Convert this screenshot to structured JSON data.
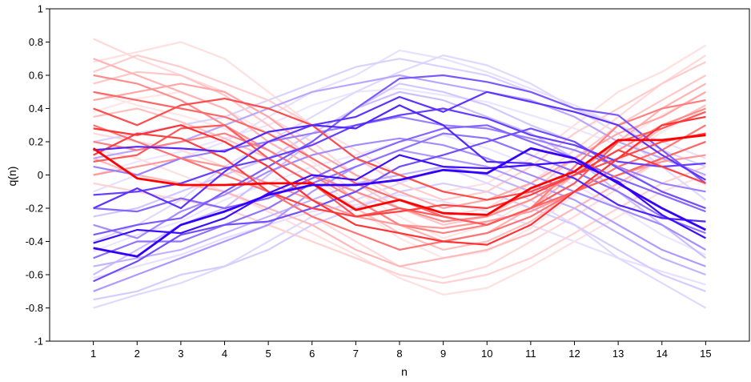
{
  "chart_data": {
    "type": "line",
    "xlabel": "n",
    "ylabel": "q(n)",
    "xlim": [
      0,
      16
    ],
    "ylim": [
      -1,
      1
    ],
    "x": [
      1,
      2,
      3,
      4,
      5,
      6,
      7,
      8,
      9,
      10,
      11,
      12,
      13,
      14,
      15
    ],
    "x_tick_labels": [
      "1",
      "2",
      "3",
      "4",
      "5",
      "6",
      "7",
      "8",
      "9",
      "10",
      "11",
      "12",
      "13",
      "14",
      "15"
    ],
    "y_ticks": [
      -1,
      -0.8,
      -0.6,
      -0.4,
      -0.2,
      0,
      0.2,
      0.4,
      0.6,
      0.8,
      1
    ],
    "y_tick_labels": [
      "-1",
      "-0.8",
      "-0.6",
      "-0.4",
      "-0.2",
      "0",
      "0.2",
      "0.4",
      "0.6",
      "0.8",
      "1"
    ],
    "grid": false,
    "legend": "none",
    "colors": {
      "red_family": "#ff0000",
      "blue_family": "#3300ff",
      "background": "#ffffff",
      "axis": "#000000"
    },
    "series": [
      {
        "family": "red",
        "intensity": 1.0,
        "values": [
          0.16,
          -0.02,
          -0.06,
          -0.06,
          -0.05,
          -0.05,
          -0.21,
          -0.15,
          -0.23,
          -0.24,
          -0.08,
          0.02,
          0.21,
          0.21,
          0.24
        ]
      },
      {
        "family": "blue",
        "intensity": 1.0,
        "values": [
          -0.44,
          -0.49,
          -0.3,
          -0.22,
          -0.12,
          -0.06,
          -0.06,
          -0.03,
          0.03,
          0.01,
          0.16,
          0.1,
          -0.05,
          -0.2,
          -0.33
        ]
      },
      {
        "family": "blue",
        "intensity": 0.95,
        "values": [
          -0.41,
          -0.33,
          -0.35,
          -0.26,
          -0.11,
          0.0,
          -0.03,
          0.12,
          0.05,
          0.04,
          0.06,
          0.08,
          -0.04,
          -0.24,
          -0.38
        ]
      },
      {
        "family": "blue",
        "intensity": 0.85,
        "values": [
          0.15,
          0.17,
          0.16,
          0.14,
          0.26,
          0.3,
          0.28,
          0.42,
          0.3,
          0.08,
          0.07,
          -0.02,
          -0.18,
          -0.26,
          -0.28
        ]
      },
      {
        "family": "blue",
        "intensity": 0.8,
        "values": [
          -0.2,
          -0.08,
          -0.2,
          0.02,
          0.2,
          0.3,
          0.35,
          0.47,
          0.38,
          0.5,
          0.44,
          0.38,
          0.3,
          0.12,
          -0.03
        ]
      },
      {
        "family": "blue",
        "intensity": 0.75,
        "values": [
          -0.12,
          -0.1,
          -0.05,
          0.04,
          0.1,
          0.18,
          0.3,
          0.36,
          0.4,
          0.34,
          0.24,
          0.18,
          0.08,
          0.05,
          0.07
        ]
      },
      {
        "family": "blue",
        "intensity": 0.7,
        "values": [
          -0.64,
          -0.52,
          -0.36,
          -0.3,
          -0.28,
          -0.2,
          -0.1,
          0.05,
          0.12,
          0.2,
          0.28,
          0.2,
          0.04,
          -0.1,
          -0.2
        ]
      },
      {
        "family": "blue",
        "intensity": 0.65,
        "values": [
          -0.36,
          -0.3,
          -0.26,
          -0.1,
          0.05,
          0.2,
          0.4,
          0.58,
          0.6,
          0.56,
          0.5,
          0.4,
          0.36,
          0.15,
          -0.05
        ]
      },
      {
        "family": "blue",
        "intensity": 0.6,
        "values": [
          -0.2,
          -0.22,
          -0.14,
          -0.2,
          -0.14,
          -0.02,
          0.1,
          0.2,
          0.28,
          0.3,
          0.2,
          0.1,
          -0.02,
          -0.12,
          -0.22
        ]
      },
      {
        "family": "blue",
        "intensity": 0.55,
        "values": [
          -0.5,
          -0.4,
          -0.4,
          -0.3,
          -0.2,
          -0.05,
          0.05,
          0.15,
          0.25,
          0.22,
          0.12,
          0.02,
          -0.1,
          -0.25,
          -0.35
        ]
      },
      {
        "family": "blue",
        "intensity": 0.5,
        "values": [
          0.05,
          0.0,
          0.1,
          0.15,
          0.2,
          0.25,
          0.3,
          0.35,
          0.3,
          0.28,
          0.22,
          0.15,
          0.05,
          -0.05,
          -0.1
        ]
      },
      {
        "family": "blue",
        "intensity": 0.45,
        "values": [
          -0.3,
          -0.38,
          -0.22,
          -0.12,
          0.02,
          0.12,
          0.18,
          0.22,
          0.18,
          0.1,
          0.0,
          -0.1,
          -0.2,
          -0.3,
          -0.45
        ]
      },
      {
        "family": "blue",
        "intensity": 0.4,
        "values": [
          -0.7,
          -0.6,
          -0.5,
          -0.4,
          -0.3,
          -0.1,
          0.05,
          0.15,
          0.1,
          0.05,
          -0.05,
          -0.15,
          -0.3,
          -0.45,
          -0.55
        ]
      },
      {
        "family": "blue",
        "intensity": 0.35,
        "values": [
          0.1,
          0.15,
          0.2,
          0.3,
          0.4,
          0.5,
          0.55,
          0.6,
          0.55,
          0.5,
          0.45,
          0.35,
          0.2,
          0.1,
          0.0
        ]
      },
      {
        "family": "blue",
        "intensity": 0.3,
        "values": [
          -0.55,
          -0.5,
          -0.45,
          -0.35,
          -0.25,
          -0.15,
          -0.05,
          0.0,
          0.05,
          0.0,
          -0.1,
          -0.2,
          -0.35,
          -0.5,
          -0.6
        ]
      },
      {
        "family": "blue",
        "intensity": 0.25,
        "values": [
          -0.6,
          -0.45,
          -0.3,
          -0.2,
          0.0,
          0.2,
          0.4,
          0.5,
          0.45,
          0.35,
          0.25,
          0.1,
          -0.1,
          -0.3,
          -0.5
        ]
      },
      {
        "family": "blue",
        "intensity": 0.22,
        "values": [
          -0.25,
          -0.2,
          -0.1,
          0.0,
          0.1,
          0.25,
          0.4,
          0.55,
          0.5,
          0.42,
          0.3,
          0.2,
          0.05,
          -0.1,
          -0.2
        ]
      },
      {
        "family": "blue",
        "intensity": 0.2,
        "values": [
          -0.75,
          -0.7,
          -0.6,
          -0.55,
          -0.45,
          -0.3,
          -0.2,
          -0.1,
          -0.05,
          -0.1,
          -0.2,
          -0.3,
          -0.45,
          -0.6,
          -0.7
        ]
      },
      {
        "family": "blue",
        "intensity": 0.18,
        "values": [
          0.2,
          0.25,
          0.3,
          0.35,
          0.45,
          0.55,
          0.65,
          0.7,
          0.65,
          0.6,
          0.5,
          0.4,
          0.3,
          0.15,
          0.05
        ]
      },
      {
        "family": "blue",
        "intensity": 0.15,
        "values": [
          -0.8,
          -0.72,
          -0.65,
          -0.55,
          -0.4,
          -0.25,
          -0.15,
          -0.05,
          0.05,
          -0.05,
          -0.15,
          -0.3,
          -0.5,
          -0.65,
          -0.8
        ]
      },
      {
        "family": "blue",
        "intensity": 0.15,
        "values": [
          -0.4,
          -0.3,
          -0.15,
          0.05,
          0.2,
          0.35,
          0.5,
          0.62,
          0.72,
          0.66,
          0.55,
          0.4,
          0.25,
          0.05,
          -0.15
        ]
      },
      {
        "family": "blue",
        "intensity": 0.12,
        "values": [
          -0.1,
          0.0,
          0.1,
          0.2,
          0.35,
          0.5,
          0.6,
          0.75,
          0.7,
          0.62,
          0.52,
          0.42,
          0.3,
          0.2,
          0.1
        ]
      },
      {
        "family": "blue",
        "intensity": 0.12,
        "values": [
          -0.62,
          -0.55,
          -0.48,
          -0.38,
          -0.3,
          -0.22,
          -0.18,
          -0.12,
          -0.16,
          -0.22,
          -0.3,
          -0.4,
          -0.5,
          -0.58,
          -0.66
        ]
      },
      {
        "family": "blue",
        "intensity": 0.1,
        "values": [
          -0.46,
          -0.36,
          -0.28,
          -0.15,
          -0.05,
          0.05,
          0.12,
          0.2,
          0.24,
          0.16,
          0.06,
          -0.06,
          -0.2,
          -0.36,
          -0.48
        ]
      },
      {
        "family": "blue",
        "intensity": 0.1,
        "values": [
          0.0,
          0.08,
          0.14,
          0.22,
          0.3,
          0.42,
          0.5,
          0.52,
          0.48,
          0.44,
          0.36,
          0.28,
          0.18,
          0.06,
          -0.06
        ]
      },
      {
        "family": "red",
        "intensity": 0.8,
        "values": [
          0.28,
          0.24,
          0.3,
          0.2,
          0.05,
          -0.15,
          -0.3,
          -0.35,
          -0.4,
          -0.42,
          -0.3,
          -0.1,
          0.1,
          0.3,
          0.35
        ]
      },
      {
        "family": "red",
        "intensity": 0.75,
        "values": [
          0.12,
          0.25,
          0.22,
          0.1,
          -0.1,
          -0.2,
          -0.25,
          -0.22,
          -0.18,
          -0.2,
          -0.12,
          0.0,
          0.15,
          0.05,
          -0.05
        ]
      },
      {
        "family": "red",
        "intensity": 0.7,
        "values": [
          0.4,
          0.3,
          0.42,
          0.46,
          0.4,
          0.3,
          0.1,
          0.0,
          -0.1,
          -0.15,
          -0.1,
          0.0,
          0.1,
          0.2,
          0.25
        ]
      },
      {
        "family": "red",
        "intensity": 0.65,
        "values": [
          0.08,
          0.12,
          0.28,
          0.3,
          0.1,
          -0.05,
          -0.25,
          -0.2,
          -0.25,
          -0.3,
          -0.2,
          -0.05,
          0.2,
          0.28,
          0.38
        ]
      },
      {
        "family": "red",
        "intensity": 0.6,
        "values": [
          0.5,
          0.45,
          0.4,
          0.35,
          0.25,
          0.1,
          -0.05,
          -0.15,
          -0.25,
          -0.3,
          -0.2,
          -0.1,
          0.0,
          0.1,
          0.2
        ]
      },
      {
        "family": "red",
        "intensity": 0.55,
        "values": [
          0.3,
          0.2,
          0.1,
          0.0,
          -0.1,
          -0.25,
          -0.35,
          -0.45,
          -0.4,
          -0.35,
          -0.25,
          -0.1,
          0.05,
          0.15,
          0.3
        ]
      },
      {
        "family": "red",
        "intensity": 0.5,
        "values": [
          0.2,
          0.15,
          0.2,
          0.25,
          0.15,
          0.0,
          -0.15,
          -0.3,
          -0.35,
          -0.3,
          -0.2,
          0.05,
          0.3,
          0.4,
          0.45
        ]
      },
      {
        "family": "red",
        "intensity": 0.45,
        "values": [
          0.6,
          0.55,
          0.45,
          0.3,
          0.15,
          0.0,
          -0.1,
          -0.2,
          -0.28,
          -0.25,
          -0.15,
          0.0,
          0.15,
          0.3,
          0.4
        ]
      },
      {
        "family": "red",
        "intensity": 0.4,
        "values": [
          0.0,
          0.05,
          0.1,
          0.05,
          -0.05,
          -0.15,
          -0.25,
          -0.3,
          -0.32,
          -0.28,
          -0.22,
          -0.1,
          0.0,
          0.08,
          0.12
        ]
      },
      {
        "family": "red",
        "intensity": 0.35,
        "values": [
          0.45,
          0.5,
          0.55,
          0.5,
          0.35,
          0.15,
          0.0,
          -0.1,
          -0.2,
          -0.15,
          -0.05,
          0.1,
          0.25,
          0.35,
          0.5
        ]
      },
      {
        "family": "red",
        "intensity": 0.3,
        "values": [
          0.7,
          0.6,
          0.5,
          0.4,
          0.2,
          0.05,
          -0.15,
          -0.3,
          -0.4,
          -0.35,
          -0.2,
          0.0,
          0.2,
          0.4,
          0.55
        ]
      },
      {
        "family": "red",
        "intensity": 0.28,
        "values": [
          0.1,
          0.0,
          -0.05,
          -0.1,
          -0.2,
          -0.3,
          -0.45,
          -0.55,
          -0.5,
          -0.45,
          -0.35,
          -0.2,
          -0.05,
          0.1,
          0.2
        ]
      },
      {
        "family": "red",
        "intensity": 0.25,
        "values": [
          0.35,
          0.4,
          0.32,
          0.22,
          0.1,
          -0.05,
          -0.2,
          -0.35,
          -0.45,
          -0.4,
          -0.28,
          -0.1,
          0.1,
          0.28,
          0.42
        ]
      },
      {
        "family": "red",
        "intensity": 0.22,
        "values": [
          0.55,
          0.62,
          0.6,
          0.48,
          0.3,
          0.1,
          -0.05,
          -0.2,
          -0.3,
          -0.25,
          -0.1,
          0.1,
          0.3,
          0.45,
          0.6
        ]
      },
      {
        "family": "red",
        "intensity": 0.2,
        "values": [
          0.62,
          0.72,
          0.65,
          0.55,
          0.45,
          0.3,
          0.1,
          -0.05,
          -0.15,
          -0.1,
          0.05,
          0.25,
          0.4,
          0.55,
          0.68
        ]
      },
      {
        "family": "red",
        "intensity": 0.18,
        "values": [
          -0.05,
          -0.1,
          -0.15,
          -0.2,
          -0.3,
          -0.4,
          -0.5,
          -0.6,
          -0.65,
          -0.6,
          -0.5,
          -0.35,
          -0.2,
          -0.05,
          0.05
        ]
      },
      {
        "family": "red",
        "intensity": 0.15,
        "values": [
          0.82,
          0.7,
          0.6,
          0.5,
          0.35,
          0.2,
          0.0,
          -0.15,
          -0.25,
          -0.2,
          -0.05,
          0.15,
          0.35,
          0.55,
          0.72
        ]
      },
      {
        "family": "red",
        "intensity": 0.15,
        "values": [
          0.25,
          0.2,
          0.15,
          0.05,
          -0.1,
          -0.25,
          -0.4,
          -0.55,
          -0.62,
          -0.55,
          -0.4,
          -0.25,
          -0.08,
          0.1,
          0.2
        ]
      },
      {
        "family": "red",
        "intensity": 0.12,
        "values": [
          0.68,
          0.74,
          0.8,
          0.7,
          0.5,
          0.3,
          0.15,
          0.0,
          -0.1,
          -0.05,
          0.1,
          0.3,
          0.5,
          0.62,
          0.78
        ]
      },
      {
        "family": "red",
        "intensity": 0.12,
        "values": [
          0.15,
          0.1,
          0.0,
          -0.1,
          -0.22,
          -0.35,
          -0.48,
          -0.62,
          -0.72,
          -0.68,
          -0.55,
          -0.4,
          -0.25,
          -0.1,
          0.0
        ]
      },
      {
        "family": "red",
        "intensity": 0.1,
        "values": [
          0.5,
          0.42,
          0.36,
          0.28,
          0.15,
          0.0,
          -0.2,
          -0.38,
          -0.5,
          -0.46,
          -0.32,
          -0.12,
          0.08,
          0.26,
          0.4
        ]
      },
      {
        "family": "red",
        "intensity": 0.1,
        "values": [
          0.38,
          0.46,
          0.5,
          0.4,
          0.25,
          0.08,
          -0.1,
          -0.25,
          -0.38,
          -0.3,
          -0.15,
          0.02,
          0.2,
          0.36,
          0.5
        ]
      }
    ]
  }
}
